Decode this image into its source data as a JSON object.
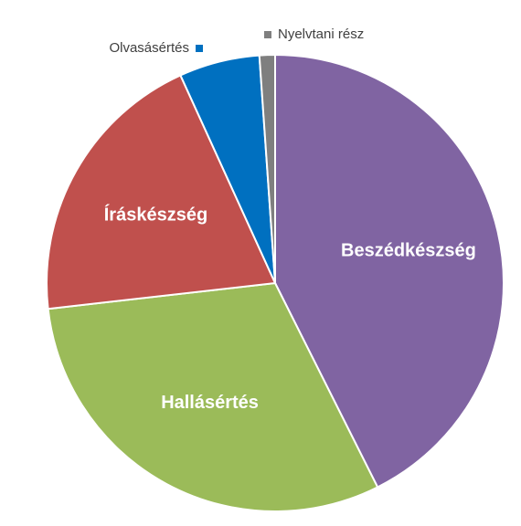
{
  "chart_data": {
    "type": "pie",
    "categories": [
      "Beszédkészség",
      "Hallásértés",
      "Íráskészség",
      "Olvasásértés",
      "Nyelvtani rész"
    ],
    "values": [
      42.6,
      30.6,
      20,
      5.7,
      1.1
    ],
    "colors": [
      "#8064a2",
      "#9bbb59",
      "#c0504d",
      "#0070c0",
      "#7f7f7f"
    ]
  }
}
